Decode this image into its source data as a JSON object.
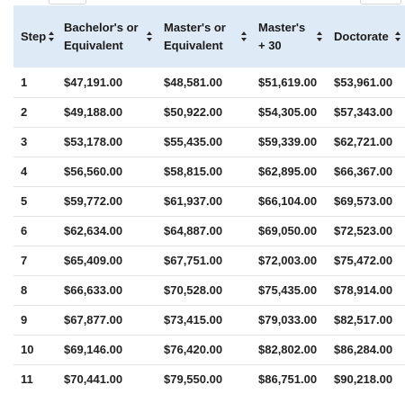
{
  "table": {
    "headers": [
      {
        "line1": "Step",
        "line2": ""
      },
      {
        "line1": "Bachelor's or",
        "line2": "Equivalent"
      },
      {
        "line1": "Master's or",
        "line2": "Equivalent"
      },
      {
        "line1": "Master's",
        "line2": "+ 30"
      },
      {
        "line1": "Doctorate",
        "line2": ""
      }
    ],
    "rows": [
      [
        "1",
        "$47,191.00",
        "$48,581.00",
        "$51,619.00",
        "$53,961.00"
      ],
      [
        "2",
        "$49,188.00",
        "$50,922.00",
        "$54,305.00",
        "$57,343.00"
      ],
      [
        "3",
        "$53,178.00",
        "$55,435.00",
        "$59,339.00",
        "$62,721.00"
      ],
      [
        "4",
        "$56,560.00",
        "$58,815.00",
        "$62,895.00",
        "$66,367.00"
      ],
      [
        "5",
        "$59,772.00",
        "$61,937.00",
        "$66,104.00",
        "$69,573.00"
      ],
      [
        "6",
        "$62,634.00",
        "$64,887.00",
        "$69,050.00",
        "$72,523.00"
      ],
      [
        "7",
        "$65,409.00",
        "$67,751.00",
        "$72,003.00",
        "$75,472.00"
      ],
      [
        "8",
        "$66,633.00",
        "$70,528.00",
        "$75,435.00",
        "$78,914.00"
      ],
      [
        "9",
        "$67,877.00",
        "$73,415.00",
        "$79,033.00",
        "$82,517.00"
      ],
      [
        "10",
        "$69,146.00",
        "$76,420.00",
        "$82,802.00",
        "$86,284.00"
      ],
      [
        "11",
        "$70,441.00",
        "$79,550.00",
        "$86,751.00",
        "$90,218.00"
      ]
    ]
  }
}
